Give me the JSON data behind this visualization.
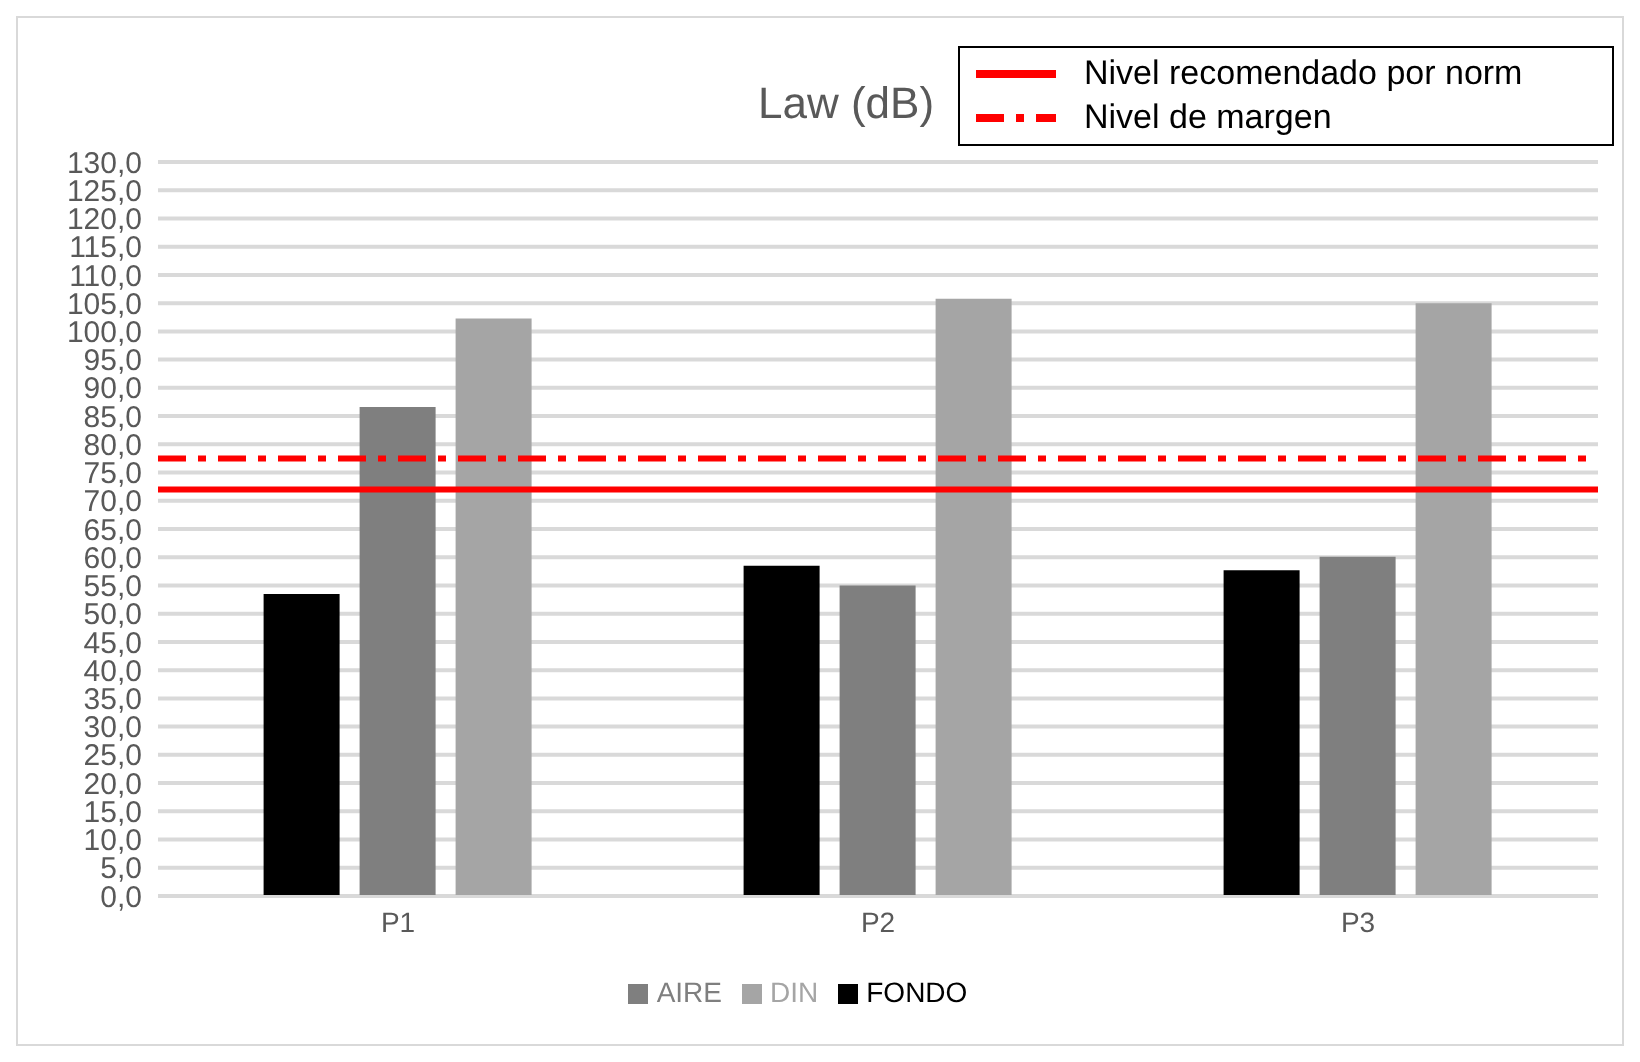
{
  "chart_data": {
    "type": "bar",
    "title": "Law (dB)",
    "categories": [
      "P1",
      "P2",
      "P3"
    ],
    "series": [
      {
        "name": "FONDO",
        "color": "#000000",
        "values": [
          53.5,
          58.5,
          57.7
        ]
      },
      {
        "name": "AIRE",
        "color": "#7f7f7f",
        "values": [
          86.6,
          55.0,
          60.1
        ]
      },
      {
        "name": "DIN",
        "color": "#a5a5a5",
        "values": [
          102.3,
          105.8,
          105.0
        ]
      }
    ],
    "ylim": [
      0,
      130
    ],
    "yticks": [
      {
        "value": 0,
        "label": "0,0"
      },
      {
        "value": 5,
        "label": "5,0"
      },
      {
        "value": 10,
        "label": "10,0"
      },
      {
        "value": 15,
        "label": "15,0"
      },
      {
        "value": 20,
        "label": "20,0"
      },
      {
        "value": 25,
        "label": "25,0"
      },
      {
        "value": 30,
        "label": "30,0"
      },
      {
        "value": 35,
        "label": "35,0"
      },
      {
        "value": 40,
        "label": "40,0"
      },
      {
        "value": 45,
        "label": "45,0"
      },
      {
        "value": 50,
        "label": "50,0"
      },
      {
        "value": 55,
        "label": "55,0"
      },
      {
        "value": 60,
        "label": "60,0"
      },
      {
        "value": 65,
        "label": "65,0"
      },
      {
        "value": 70,
        "label": "70,0"
      },
      {
        "value": 75,
        "label": "75,0"
      },
      {
        "value": 80,
        "label": "80,0"
      },
      {
        "value": 85,
        "label": "85,0"
      },
      {
        "value": 90,
        "label": "90,0"
      },
      {
        "value": 95,
        "label": "95,0"
      },
      {
        "value": 100,
        "label": "100,0"
      },
      {
        "value": 105,
        "label": "105,0"
      },
      {
        "value": 110,
        "label": "110,0"
      },
      {
        "value": 115,
        "label": "115,0"
      },
      {
        "value": 120,
        "label": "120,0"
      },
      {
        "value": 125,
        "label": "125,0"
      },
      {
        "value": 130,
        "label": "130,0"
      }
    ],
    "ref_lines": [
      {
        "axis": "y",
        "value": 72,
        "label": "Nivel recomendado por norm",
        "color": "#ff0000",
        "line_style": "solid"
      },
      {
        "axis": "y",
        "value": 77.5,
        "label": "Nivel de margen",
        "color": "#ff0000",
        "line_style": "dashed"
      }
    ],
    "grid": "y",
    "legend": "bottom"
  }
}
